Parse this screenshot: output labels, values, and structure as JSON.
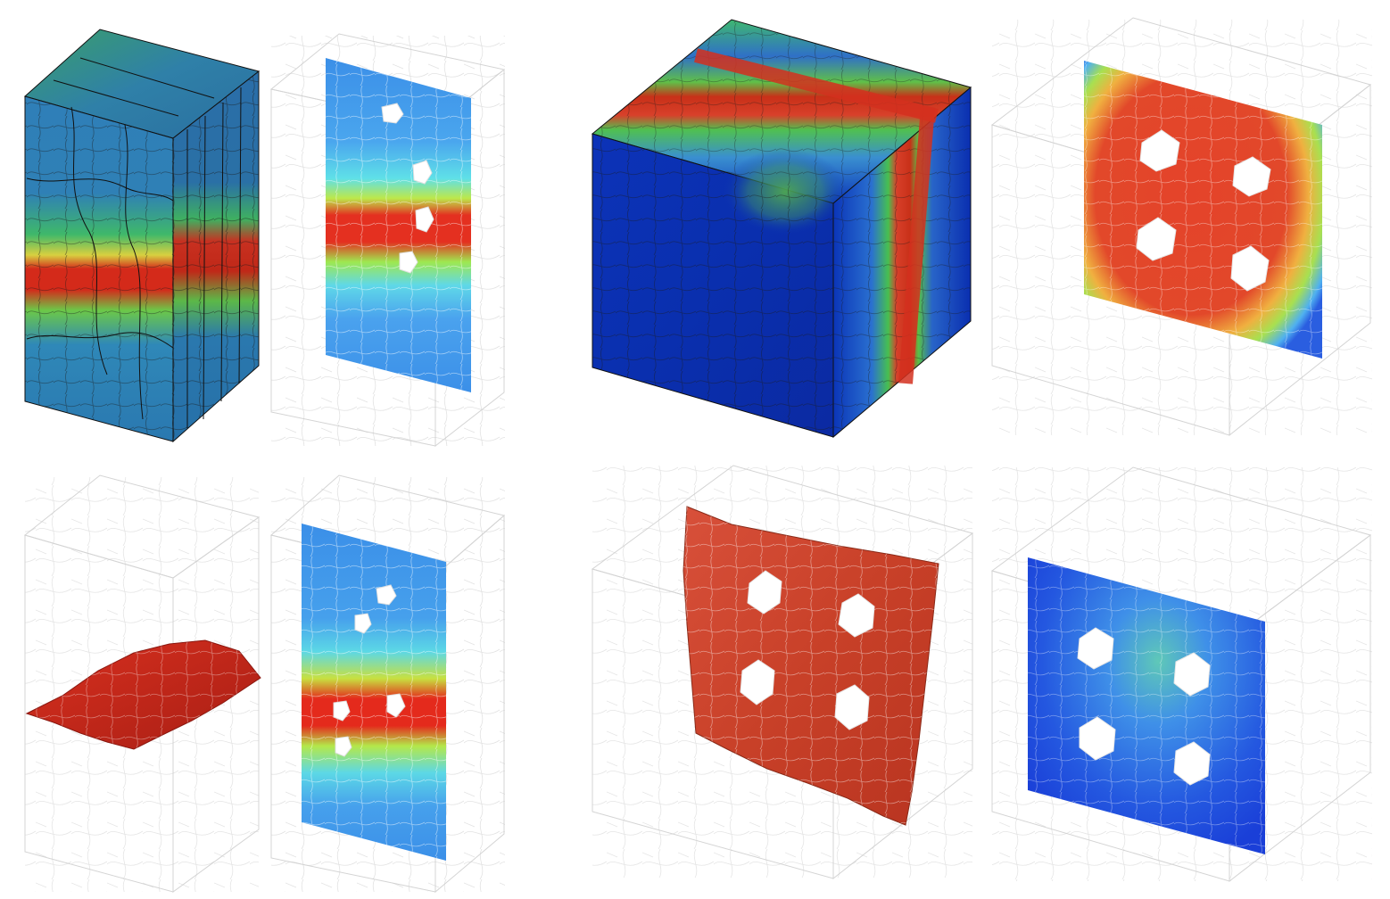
{
  "figure": {
    "panels": [
      {
        "id": "a1",
        "kind": "tall-block",
        "view": "solid-block-horizontal-band",
        "band_color": "#d42a1a"
      },
      {
        "id": "a2",
        "kind": "tall-block",
        "view": "wireframe-vertical-slice-horizontal-band"
      },
      {
        "id": "a3",
        "kind": "tall-block",
        "view": "wireframe-horizontal-surface",
        "surface_color": "#c8271f"
      },
      {
        "id": "a4",
        "kind": "tall-block",
        "view": "wireframe-vertical-slice-band-with-holes"
      },
      {
        "id": "b1",
        "kind": "cube",
        "view": "solid-cube-edge-band"
      },
      {
        "id": "b2",
        "kind": "cube",
        "view": "wireframe-slice-four-holes-hot"
      },
      {
        "id": "b3",
        "kind": "cube",
        "view": "wireframe-fractured-surface-four-holes",
        "surface_color": "#c8432a"
      },
      {
        "id": "b4",
        "kind": "cube",
        "view": "wireframe-slice-four-holes-cool"
      }
    ],
    "colors": {
      "blue_deep": "#0a2fb0",
      "blue_mid": "#2f7fd8",
      "cyan": "#4fd0e8",
      "green": "#3fc04a",
      "yellow": "#e8e03a",
      "red": "#d42a1a",
      "grain_line": "#1a1a1a",
      "wire": "#c8c8c8"
    }
  }
}
